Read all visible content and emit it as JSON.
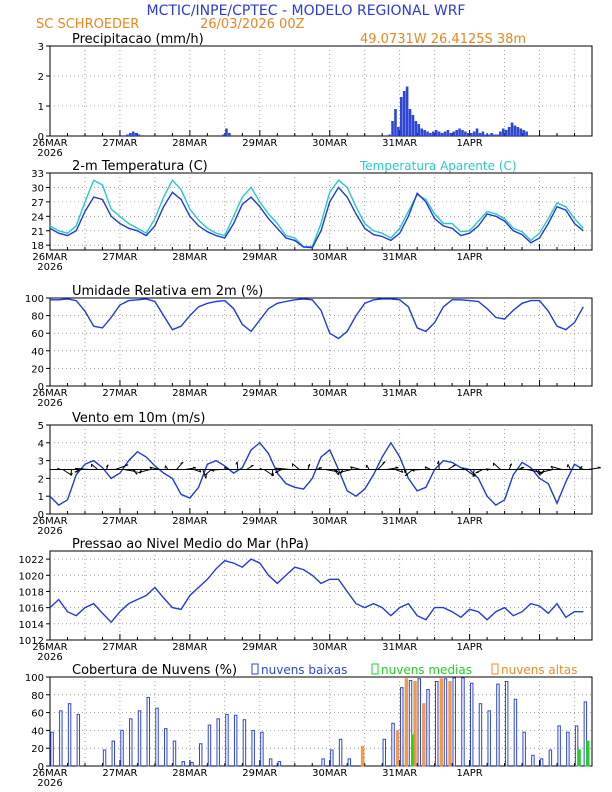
{
  "header": {
    "title": "MCTIC/INPE/CPTEC - MODELO REGIONAL WRF",
    "location": "SC SCHROEDER",
    "run": "26/03/2026 00Z",
    "coords": "49.0731W 26.4125S 38m"
  },
  "colors": {
    "title": "#2a3bd6",
    "subtitle": "#e8871e",
    "line_primary": "#1f3bd9",
    "line_secondary": "#2ac8c8",
    "bar_low": "#2e46d6",
    "bar_mid": "#22d022",
    "bar_high": "#f08a2a",
    "grid": "#8c8c8c"
  },
  "chart_data": [
    {
      "type": "bar",
      "title": "Precipitacao (mm/h)",
      "x_label_start": "26MAR",
      "x_label_year": "2026",
      "x_tick_labels": [
        "26MAR",
        "27MAR",
        "28MAR",
        "29MAR",
        "30MAR",
        "31MAR",
        "1APR"
      ],
      "ylim": [
        0,
        3
      ],
      "y_ticks": [
        "0",
        "1",
        "2",
        "3"
      ],
      "hours_step": 1,
      "series": [
        {
          "name": "precipitacao",
          "values": [
            0,
            0,
            0,
            0,
            0,
            0,
            0,
            0,
            0,
            0,
            0,
            0,
            0,
            0,
            0,
            0,
            0,
            0,
            0,
            0,
            0,
            0,
            0,
            0,
            0,
            0,
            0.05,
            0.1,
            0.15,
            0.1,
            0.05,
            0,
            0,
            0,
            0,
            0,
            0,
            0,
            0,
            0,
            0,
            0,
            0,
            0,
            0,
            0,
            0,
            0,
            0,
            0,
            0,
            0,
            0,
            0,
            0,
            0,
            0,
            0,
            0,
            0.05,
            0.25,
            0.1,
            0,
            0,
            0,
            0,
            0,
            0,
            0,
            0,
            0,
            0,
            0,
            0,
            0,
            0,
            0,
            0,
            0,
            0,
            0,
            0,
            0,
            0,
            0,
            0,
            0,
            0,
            0,
            0,
            0,
            0,
            0,
            0,
            0,
            0,
            0,
            0,
            0,
            0,
            0,
            0,
            0,
            0,
            0,
            0,
            0,
            0,
            0,
            0,
            0,
            0,
            0,
            0,
            0,
            0,
            0.05,
            0.5,
            0.9,
            0.3,
            1.3,
            1.5,
            1.65,
            0.9,
            0.7,
            0.5,
            0.4,
            0.25,
            0.2,
            0.15,
            0.1,
            0.15,
            0.2,
            0.15,
            0.1,
            0.15,
            0.2,
            0.1,
            0.15,
            0.2,
            0.25,
            0.2,
            0.15,
            0.1,
            0.1,
            0.15,
            0.25,
            0.1,
            0.15,
            0.05,
            0.05,
            0.1,
            0.05,
            0.05,
            0.15,
            0.25,
            0.2,
            0.3,
            0.45,
            0.35,
            0.3,
            0.25,
            0.2,
            0.15
          ]
        }
      ]
    },
    {
      "type": "line",
      "title": "2-m Temperatura (C)",
      "legend": "Temperatura Aparente (C)",
      "ylim": [
        17,
        33
      ],
      "y_ticks": [
        "18",
        "21",
        "24",
        "27",
        "30",
        "33"
      ],
      "hours_step": 3,
      "series": [
        {
          "name": "temperatura",
          "values": [
            21.5,
            20.5,
            20,
            21,
            25,
            28,
            27.5,
            24,
            22.5,
            21.5,
            21,
            20,
            22,
            26,
            29,
            27.5,
            24,
            22,
            20.8,
            20,
            19.5,
            22.5,
            26.5,
            28,
            26,
            23.5,
            21.5,
            19.5,
            19,
            17.6,
            17.5,
            21,
            27,
            30,
            28,
            24.5,
            21.5,
            20.2,
            19.8,
            19,
            20.5,
            24,
            28.8,
            27,
            23.5,
            22,
            21.5,
            20,
            20.5,
            22,
            24.5,
            24,
            23,
            21,
            20.2,
            18.5,
            19.5,
            22.5,
            26,
            25.3,
            22.5,
            21
          ]
        },
        {
          "name": "temperatura aparente",
          "values": [
            22,
            21,
            20.5,
            22,
            27,
            31.5,
            30.5,
            25.5,
            24,
            22.5,
            21.5,
            20.5,
            23.5,
            28,
            31.5,
            29.5,
            25.5,
            23.2,
            21.5,
            20.5,
            20,
            24,
            28,
            30,
            27,
            24.5,
            22.5,
            20,
            19.5,
            17.7,
            17.7,
            22.5,
            29,
            31.5,
            30,
            26,
            22.5,
            21,
            20.5,
            19.5,
            21.5,
            25,
            28.5,
            27.5,
            24.5,
            22.5,
            22.5,
            20.8,
            21,
            23,
            25,
            24.5,
            23.5,
            21.5,
            20.8,
            19,
            20.5,
            23.5,
            26.8,
            26,
            23.5,
            21.5
          ]
        }
      ]
    },
    {
      "type": "line",
      "title": "Umidade Relativa em 2m (%)",
      "ylim": [
        0,
        100
      ],
      "y_ticks": [
        "0",
        "20",
        "40",
        "60",
        "80",
        "100"
      ],
      "hours_step": 3,
      "series": [
        {
          "name": "umidade",
          "values": [
            98,
            98,
            99,
            97,
            85,
            68,
            66,
            78,
            92,
            97,
            98,
            99,
            96,
            80,
            64,
            68,
            80,
            90,
            94,
            96,
            97,
            88,
            70,
            62,
            75,
            88,
            94,
            96,
            98,
            99,
            98,
            86,
            60,
            54,
            62,
            80,
            94,
            98,
            99,
            99,
            98,
            90,
            66,
            62,
            72,
            90,
            98,
            98,
            97,
            96,
            88,
            78,
            76,
            86,
            94,
            97,
            97,
            85,
            68,
            64,
            72,
            90
          ]
        }
      ]
    },
    {
      "type": "line",
      "title": "Vento em 10m (m/s)",
      "ylim": [
        0,
        5
      ],
      "y_ticks": [
        "0",
        "1",
        "2",
        "3",
        "4",
        "5"
      ],
      "hours_step": 3,
      "series": [
        {
          "name": "vento",
          "values": [
            1,
            0.5,
            0.8,
            2.2,
            2.8,
            3,
            2.6,
            2,
            2.3,
            3,
            3.5,
            3.2,
            2.7,
            2.3,
            2,
            1.1,
            0.9,
            1.5,
            2.8,
            3,
            2.7,
            2.3,
            2.6,
            3.6,
            4,
            3.4,
            2.3,
            1.7,
            1.5,
            1.4,
            2,
            3.2,
            3.6,
            2.5,
            1.3,
            1,
            1.4,
            2.2,
            3.2,
            4,
            3.2,
            2,
            1.3,
            1.5,
            2.5,
            3,
            2.9,
            2.6,
            2.5,
            2,
            1,
            0.5,
            0.8,
            2.2,
            2.9,
            2.6,
            2,
            1.7,
            0.6,
            1.8,
            2.8,
            2.5
          ]
        }
      ]
    },
    {
      "type": "line",
      "title": "Pressao ao Nivel Medio do Mar (hPa)",
      "ylim": [
        1012,
        1023
      ],
      "y_ticks": [
        "1012",
        "1014",
        "1016",
        "1018",
        "1020",
        "1022"
      ],
      "hours_step": 3,
      "series": [
        {
          "name": "pressao",
          "values": [
            1016,
            1017,
            1015.5,
            1015,
            1016,
            1016.5,
            1015.3,
            1014.2,
            1015.5,
            1016.5,
            1017,
            1017.5,
            1018.5,
            1017.2,
            1016,
            1015.8,
            1017.5,
            1018.5,
            1019.5,
            1020.8,
            1021.8,
            1021.5,
            1021,
            1022,
            1021.5,
            1020,
            1019,
            1020,
            1021,
            1020.7,
            1020,
            1019,
            1019.5,
            1019.5,
            1018,
            1016.5,
            1016,
            1016.5,
            1016,
            1015,
            1016,
            1016.5,
            1015,
            1014.5,
            1016,
            1016,
            1015.5,
            1014.8,
            1015.8,
            1015.5,
            1014.5,
            1015.5,
            1016,
            1015,
            1015.5,
            1016.5,
            1016.2,
            1015.3,
            1016.5,
            1014.8,
            1015.5,
            1015.5
          ]
        }
      ]
    },
    {
      "type": "bar",
      "title": "Cobertura de Nuvens (%)",
      "legend": [
        "nuvens baixas",
        "nuvens medias",
        "nuvens altas"
      ],
      "ylim": [
        0,
        100
      ],
      "y_ticks": [
        "0",
        "20",
        "40",
        "60",
        "80",
        "100"
      ],
      "hours_step": 3,
      "series": [
        {
          "name": "nuvens baixas",
          "values": [
            38,
            62,
            70,
            58,
            0,
            0,
            18,
            28,
            40,
            53,
            62,
            77,
            65,
            42,
            28,
            5,
            4,
            25,
            46,
            53,
            58,
            57,
            52,
            40,
            38,
            8,
            5,
            0,
            0,
            0,
            0,
            8,
            18,
            30,
            8,
            0,
            0,
            0,
            30,
            48,
            88,
            96,
            98,
            86,
            95,
            98,
            99,
            99,
            93,
            70,
            62,
            92,
            95,
            75,
            38,
            12,
            8,
            18,
            45,
            38,
            45,
            72
          ]
        },
        {
          "name": "nuvens medias",
          "values": [
            0,
            0,
            0,
            0,
            0,
            0,
            0,
            0,
            0,
            0,
            0,
            0,
            0,
            0,
            0,
            0,
            0,
            0,
            0,
            0,
            0,
            0,
            0,
            0,
            0,
            0,
            0,
            0,
            0,
            0,
            0,
            0,
            0,
            0,
            0,
            0,
            0,
            0,
            0,
            0,
            0,
            35,
            0,
            0,
            0,
            0,
            0,
            0,
            0,
            0,
            0,
            0,
            0,
            0,
            0,
            0,
            0,
            0,
            0,
            0,
            18,
            28
          ]
        },
        {
          "name": "nuvens altas",
          "values": [
            0,
            0,
            0,
            0,
            0,
            0,
            0,
            0,
            0,
            0,
            0,
            0,
            0,
            0,
            0,
            0,
            0,
            0,
            0,
            0,
            0,
            0,
            0,
            0,
            0,
            0,
            0,
            0,
            0,
            0,
            0,
            0,
            0,
            0,
            0,
            22,
            0,
            0,
            0,
            40,
            98,
            95,
            70,
            0,
            98,
            95,
            0,
            0,
            0,
            0,
            0,
            0,
            0,
            0,
            0,
            0,
            0,
            0,
            0,
            0,
            0,
            0
          ]
        }
      ]
    }
  ]
}
